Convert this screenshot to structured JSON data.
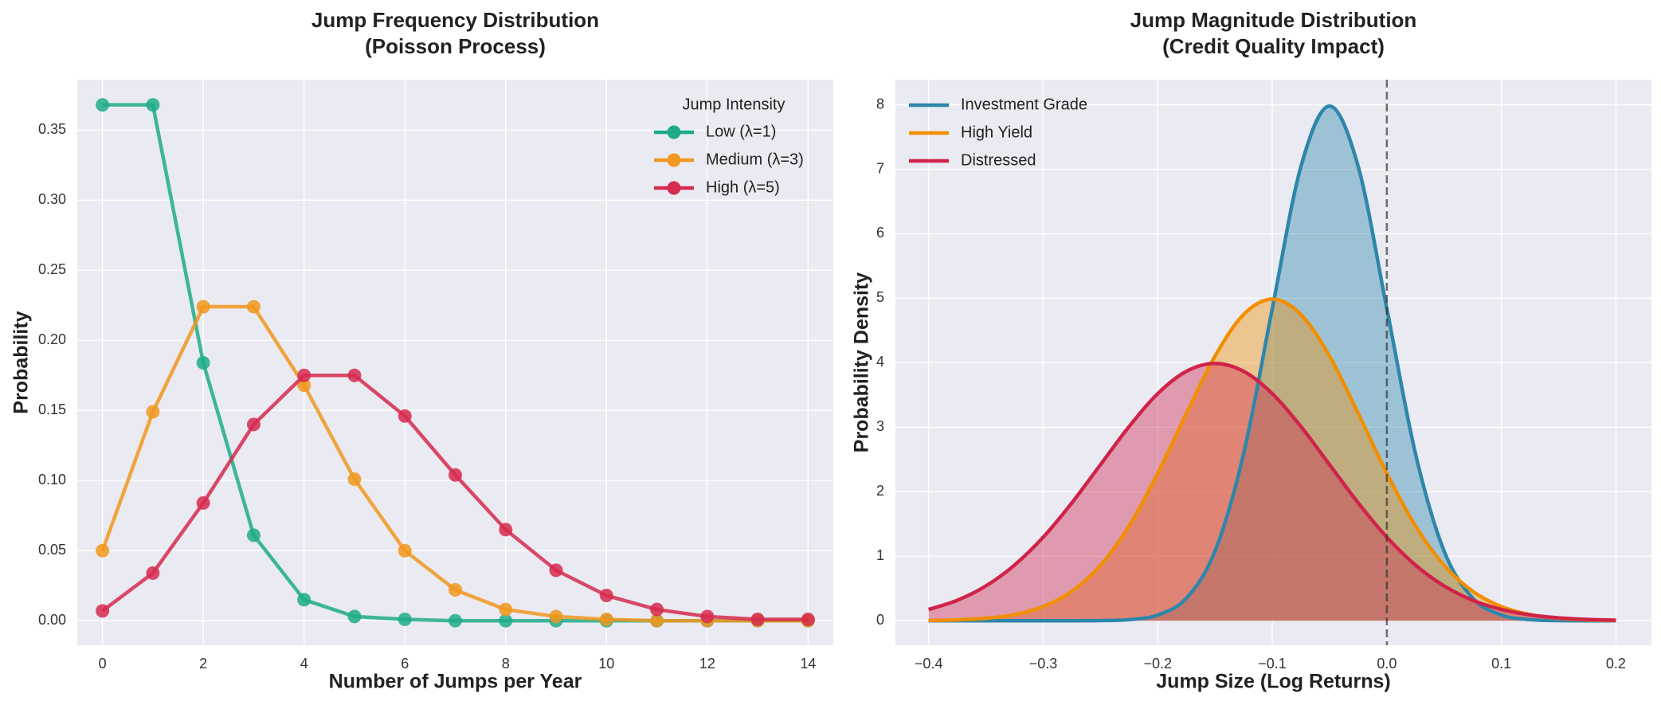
{
  "chart_data": [
    {
      "type": "line",
      "title": [
        "Jump Frequency Distribution",
        "(Poisson Process)"
      ],
      "x_label": "Number of Jumps per Year",
      "y_label": "Probability",
      "x": [
        0,
        1,
        2,
        3,
        4,
        5,
        6,
        7,
        8,
        9,
        10,
        11,
        12,
        13,
        14
      ],
      "series": [
        {
          "name": "Low (λ=1)",
          "color": "#1fab89",
          "values": [
            0.368,
            0.368,
            0.184,
            0.061,
            0.015,
            0.003,
            0.001,
            0.0,
            0.0,
            0.0,
            0.0,
            0.0,
            0.0,
            0.0,
            0.0
          ]
        },
        {
          "name": "Medium (λ=3)",
          "color": "#f0981f",
          "values": [
            0.05,
            0.149,
            0.224,
            0.224,
            0.168,
            0.101,
            0.05,
            0.022,
            0.008,
            0.003,
            0.001,
            0.0,
            0.0,
            0.0,
            0.0
          ]
        },
        {
          "name": "High (λ=5)",
          "color": "#d62a4f",
          "values": [
            0.007,
            0.034,
            0.084,
            0.14,
            0.175,
            0.175,
            0.146,
            0.104,
            0.065,
            0.036,
            0.018,
            0.008,
            0.003,
            0.001,
            0.001
          ]
        }
      ],
      "xlim": [
        -0.5,
        14.5
      ],
      "ylim": [
        -0.0175,
        0.386
      ],
      "xticks": [
        0,
        2,
        4,
        6,
        8,
        10,
        12,
        14
      ],
      "yticks": [
        {
          "value": 0,
          "label": "0.00"
        },
        {
          "value": 0.05,
          "label": "0.05"
        },
        {
          "value": 0.1,
          "label": "0.10"
        },
        {
          "value": 0.15,
          "label": "0.15"
        },
        {
          "value": 0.2,
          "label": "0.20"
        },
        {
          "value": 0.25,
          "label": "0.25"
        },
        {
          "value": 0.3,
          "label": "0.30"
        },
        {
          "value": 0.35,
          "label": "0.35"
        }
      ],
      "grid": true,
      "legend": "upper-right",
      "legend_title": "Jump Intensity"
    },
    {
      "type": "area",
      "title": [
        "Jump Magnitude Distribution",
        "(Credit Quality Impact)"
      ],
      "x_label": "Jump Size (Log Returns)",
      "y_label": "Probability Density",
      "x": [
        -0.4,
        -0.375,
        -0.35,
        -0.325,
        -0.3,
        -0.275,
        -0.25,
        -0.225,
        -0.2,
        -0.175,
        -0.15,
        -0.125,
        -0.1,
        -0.075,
        -0.05,
        -0.025,
        0,
        0.025,
        0.05,
        0.075,
        0.1,
        0.125,
        0.15,
        0.175,
        0.2
      ],
      "series": [
        {
          "name": "Investment Grade",
          "color": "#2e86ab",
          "values": [
            0,
            0,
            0,
            0,
            3e-05,
            0.0003,
            0.0027,
            0.0175,
            0.0886,
            0.35,
            1.08,
            2.591,
            4.839,
            7.042,
            7.979,
            7.042,
            4.839,
            2.591,
            1.08,
            0.35,
            0.0886,
            0.0175,
            0.0027,
            0.0003,
            3e-05
          ]
        },
        {
          "name": "High Yield",
          "color": "#f18f01",
          "values": [
            0.0044,
            0.0136,
            0.0378,
            0.0955,
            0.219,
            0.456,
            0.86,
            1.471,
            2.284,
            3.214,
            4.102,
            4.749,
            4.987,
            4.749,
            4.102,
            3.214,
            2.284,
            1.471,
            0.86,
            0.456,
            0.219,
            0.0955,
            0.0378,
            0.0136,
            0.0044
          ]
        },
        {
          "name": "Distressed",
          "color": "#d0234a",
          "values": [
            0.175,
            0.317,
            0.54,
            0.863,
            1.295,
            1.827,
            2.42,
            3.011,
            3.521,
            3.867,
            3.989,
            3.867,
            3.521,
            3.011,
            2.42,
            1.827,
            1.295,
            0.863,
            0.54,
            0.317,
            0.175,
            0.0909,
            0.0443,
            0.0203,
            0.0087
          ]
        }
      ],
      "xlim": [
        -0.429,
        0.231
      ],
      "ylim": [
        -0.38,
        8.39
      ],
      "xticks": [
        {
          "value": -0.4,
          "label": "−0.4"
        },
        {
          "value": -0.3,
          "label": "−0.3"
        },
        {
          "value": -0.2,
          "label": "−0.2"
        },
        {
          "value": -0.1,
          "label": "−0.1"
        },
        {
          "value": 0,
          "label": "0.0"
        },
        {
          "value": 0.1,
          "label": "0.1"
        },
        {
          "value": 0.2,
          "label": "0.2"
        }
      ],
      "yticks": [
        0,
        1,
        2,
        3,
        4,
        5,
        6,
        7,
        8
      ],
      "vline": 0,
      "grid": true,
      "legend": "upper-left"
    }
  ]
}
